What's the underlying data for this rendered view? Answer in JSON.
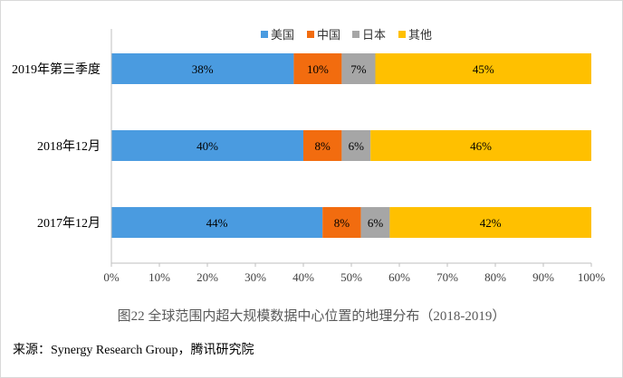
{
  "caption": "图22   全球范围内超大规模数据中心位置的地理分布（2018-2019）",
  "source": "来源：Synergy Research Group，腾讯研究院",
  "chart_data": {
    "type": "bar",
    "orientation": "horizontal",
    "stacked": "percent",
    "categories": [
      "2019年第三季度",
      "2018年12月",
      "2017年12月"
    ],
    "series": [
      {
        "name": "美国",
        "color": "#4A9BE0",
        "values": [
          38,
          40,
          44
        ],
        "labels": [
          "38%",
          "40%",
          "44%"
        ]
      },
      {
        "name": "中国",
        "color": "#F26C0F",
        "values": [
          10,
          8,
          8
        ],
        "labels": [
          "10%",
          "8%",
          "8%"
        ]
      },
      {
        "name": "日本",
        "color": "#A6A6A6",
        "values": [
          7,
          6,
          6
        ],
        "labels": [
          "7%",
          "6%",
          "6%"
        ]
      },
      {
        "name": "其他",
        "color": "#FFC000",
        "values": [
          45,
          46,
          42
        ],
        "labels": [
          "45%",
          "46%",
          "42%"
        ]
      }
    ],
    "xlim": [
      0,
      100
    ],
    "xticks": [
      "0%",
      "10%",
      "20%",
      "30%",
      "40%",
      "50%",
      "60%",
      "70%",
      "80%",
      "90%",
      "100%"
    ],
    "legend_position": "top",
    "grid": false
  }
}
